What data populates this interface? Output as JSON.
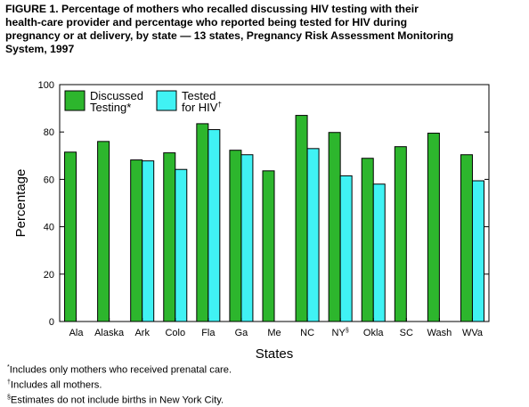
{
  "title_lines": [
    "FIGURE 1. Percentage of mothers who recalled discussing HIV testing with their",
    "health-care provider and percentage who reported being tested for HIV during",
    "pregnancy or at delivery, by state — 13 states, Pregnancy Risk Assessment Monitoring",
    "System, 1997"
  ],
  "chart_data": {
    "type": "bar",
    "categories": [
      "Ala",
      "Alaska",
      "Ark",
      "Colo",
      "Fla",
      "Ga",
      "Me",
      "NC",
      "NY",
      "Okla",
      "SC",
      "Wash",
      "WVa"
    ],
    "category_superscripts": [
      "",
      "",
      "",
      "",
      "",
      "",
      "",
      "",
      "§",
      "",
      "",
      "",
      ""
    ],
    "series": [
      {
        "name": "Discussed Testing*",
        "legend_lines": [
          "Discussed",
          "Testing*"
        ],
        "color": "#2db62d",
        "values": [
          71.5,
          76.0,
          68.2,
          71.2,
          83.5,
          72.3,
          63.6,
          87.0,
          79.8,
          68.9,
          73.8,
          79.5,
          70.4
        ]
      },
      {
        "name": "Tested for HIV†",
        "legend_lines": [
          "Tested",
          "for HIV"
        ],
        "legend_superscript": "†",
        "color": "#40f2f4",
        "values": [
          null,
          null,
          67.8,
          64.2,
          81.0,
          70.4,
          null,
          73.0,
          61.5,
          58.0,
          null,
          null,
          59.4
        ]
      }
    ],
    "xlabel": "States",
    "ylabel": "Percentage",
    "ylim": [
      0,
      100
    ],
    "yticks": [
      0,
      20,
      40,
      60,
      80,
      100
    ],
    "legend_position": "top-left"
  },
  "footnotes": [
    {
      "mark": "*",
      "text": "Includes only mothers who received prenatal care."
    },
    {
      "mark": "†",
      "text": "Includes all mothers."
    },
    {
      "mark": "§",
      "text": "Estimates do not include births in New York City."
    }
  ]
}
